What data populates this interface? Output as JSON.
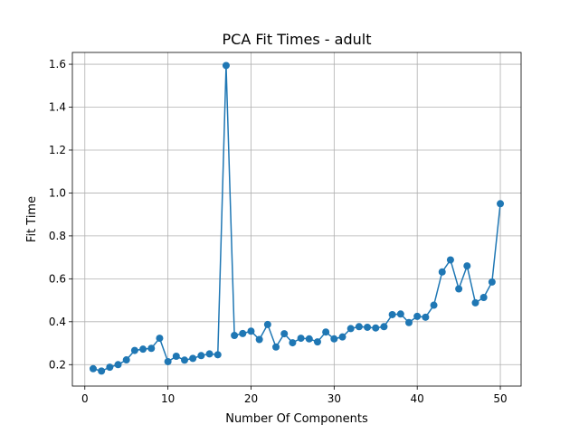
{
  "chart_data": {
    "type": "line",
    "title": "PCA Fit Times - adult",
    "xlabel": "Number Of Components",
    "ylabel": "Fit Time",
    "xlim": [
      -1.5,
      52.5
    ],
    "ylim": [
      0.1,
      1.655
    ],
    "xticks": [
      0,
      10,
      20,
      30,
      40,
      50
    ],
    "yticks": [
      0.2,
      0.4,
      0.6,
      0.8,
      1.0,
      1.2,
      1.4,
      1.6
    ],
    "ytick_labels": [
      "0.2",
      "0.4",
      "0.6",
      "0.8",
      "1.0",
      "1.2",
      "1.4",
      "1.6"
    ],
    "grid": true,
    "color": "#1f77b4",
    "x": [
      1,
      2,
      3,
      4,
      5,
      6,
      7,
      8,
      9,
      10,
      11,
      12,
      13,
      14,
      15,
      16,
      17,
      18,
      19,
      20,
      21,
      22,
      23,
      24,
      25,
      26,
      27,
      28,
      29,
      30,
      31,
      32,
      33,
      34,
      35,
      36,
      37,
      38,
      39,
      40,
      41,
      42,
      43,
      44,
      45,
      46,
      47,
      48,
      49,
      50
    ],
    "y": [
      0.181,
      0.17,
      0.188,
      0.2,
      0.222,
      0.266,
      0.272,
      0.276,
      0.323,
      0.214,
      0.239,
      0.221,
      0.229,
      0.242,
      0.25,
      0.246,
      1.594,
      0.336,
      0.345,
      0.356,
      0.317,
      0.387,
      0.282,
      0.344,
      0.302,
      0.323,
      0.32,
      0.306,
      0.352,
      0.32,
      0.329,
      0.368,
      0.377,
      0.374,
      0.371,
      0.377,
      0.433,
      0.436,
      0.396,
      0.425,
      0.421,
      0.477,
      0.632,
      0.688,
      0.553,
      0.66,
      0.488,
      0.513,
      0.585,
      0.95
    ]
  }
}
